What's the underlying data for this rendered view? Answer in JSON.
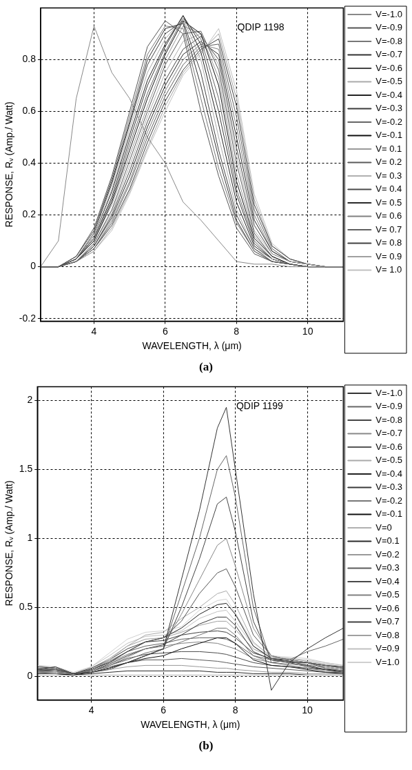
{
  "chart_data": [
    {
      "type": "line",
      "xlabel": "WAVELENGTH, λ (μm)",
      "ylabel": "RESPONSE, Rᵥ (Amp./ Watt)",
      "annotations": [
        "QDIP 1198",
        "(a)"
      ],
      "x": [
        2.5,
        3,
        3.5,
        4,
        4.5,
        5,
        5.5,
        6,
        6.5,
        7,
        7.5,
        8,
        8.5,
        9,
        9.5,
        10,
        10.5,
        11
      ],
      "xlim": [
        2.5,
        11
      ],
      "xticks": [
        4,
        6,
        8,
        10
      ],
      "ylim": [
        -0.21,
        1.0
      ],
      "yticks": [
        -0.2,
        0,
        0.2,
        0.4,
        0.6,
        0.8
      ],
      "grid": true,
      "legend": "right",
      "marker": "none",
      "line_style": "solid",
      "series": [
        {
          "name": "V=-1.0",
          "color": "#888888",
          "values": [
            0,
            0.1,
            0.65,
            0.93,
            0.75,
            0.65,
            0.5,
            0.4,
            0.25,
            0.18,
            0.1,
            0.02,
            0.01,
            0.01,
            0,
            0,
            0,
            0
          ]
        },
        {
          "name": "V=-0.9",
          "color": "#555555",
          "values": [
            0,
            0,
            0.04,
            0.15,
            0.35,
            0.6,
            0.85,
            0.95,
            0.9,
            0.6,
            0.35,
            0.15,
            0.05,
            0.02,
            0.01,
            0,
            0,
            0
          ]
        },
        {
          "name": "V=-0.8",
          "color": "#777777",
          "values": [
            0,
            0,
            0.04,
            0.14,
            0.34,
            0.58,
            0.82,
            0.93,
            0.92,
            0.65,
            0.38,
            0.17,
            0.06,
            0.02,
            0.01,
            0,
            0,
            0
          ]
        },
        {
          "name": "V=-0.7",
          "color": "#333333",
          "values": [
            0,
            0,
            0.04,
            0.14,
            0.33,
            0.56,
            0.8,
            0.92,
            0.94,
            0.7,
            0.42,
            0.18,
            0.06,
            0.02,
            0.01,
            0,
            0,
            0
          ]
        },
        {
          "name": "V=-0.6",
          "color": "#444444",
          "values": [
            0,
            0,
            0.03,
            0.13,
            0.32,
            0.55,
            0.78,
            0.9,
            0.95,
            0.75,
            0.45,
            0.2,
            0.07,
            0.02,
            0.01,
            0,
            0,
            0
          ]
        },
        {
          "name": "V=-0.5",
          "color": "#aaaaaa",
          "values": [
            0,
            0,
            0.03,
            0.12,
            0.3,
            0.53,
            0.75,
            0.88,
            0.96,
            0.8,
            0.5,
            0.22,
            0.07,
            0.03,
            0.01,
            0,
            0,
            0
          ]
        },
        {
          "name": "V=-0.4",
          "color": "#222222",
          "values": [
            0,
            0,
            0.03,
            0.12,
            0.29,
            0.51,
            0.72,
            0.86,
            0.97,
            0.83,
            0.55,
            0.25,
            0.08,
            0.03,
            0.01,
            0,
            0,
            0
          ]
        },
        {
          "name": "V=-0.3",
          "color": "#3a3a3a",
          "values": [
            0,
            0,
            0.03,
            0.11,
            0.27,
            0.49,
            0.7,
            0.85,
            0.97,
            0.86,
            0.6,
            0.28,
            0.09,
            0.03,
            0.01,
            0,
            0,
            0
          ]
        },
        {
          "name": "V=-0.2",
          "color": "#666666",
          "values": [
            0,
            0,
            0.03,
            0.11,
            0.26,
            0.47,
            0.67,
            0.83,
            0.96,
            0.88,
            0.65,
            0.3,
            0.1,
            0.03,
            0.01,
            0,
            0,
            0
          ]
        },
        {
          "name": "V=-0.1",
          "color": "#111111",
          "values": [
            0,
            0,
            0.03,
            0.1,
            0.25,
            0.45,
            0.65,
            0.82,
            0.95,
            0.9,
            0.7,
            0.33,
            0.11,
            0.04,
            0.01,
            0,
            0,
            0
          ]
        },
        {
          "name": "V= 0.1",
          "color": "#999999",
          "values": [
            0,
            0,
            0.03,
            0.1,
            0.24,
            0.43,
            0.62,
            0.8,
            0.93,
            0.9,
            0.73,
            0.36,
            0.12,
            0.04,
            0.01,
            0,
            0,
            0
          ]
        },
        {
          "name": "V= 0.2",
          "color": "#5a5a5a",
          "values": [
            0,
            0,
            0.02,
            0.09,
            0.22,
            0.41,
            0.6,
            0.78,
            0.9,
            0.91,
            0.76,
            0.4,
            0.13,
            0.04,
            0.01,
            0,
            0,
            0
          ]
        },
        {
          "name": "V= 0.3",
          "color": "#b0b0b0",
          "values": [
            0,
            0,
            0.02,
            0.09,
            0.21,
            0.39,
            0.58,
            0.75,
            0.87,
            0.9,
            0.78,
            0.43,
            0.14,
            0.05,
            0.02,
            0.01,
            0,
            0
          ]
        },
        {
          "name": "V= 0.4",
          "color": "#4a4a4a",
          "values": [
            0,
            0,
            0.02,
            0.08,
            0.2,
            0.37,
            0.56,
            0.72,
            0.84,
            0.89,
            0.8,
            0.46,
            0.16,
            0.05,
            0.02,
            0.01,
            0,
            0
          ]
        },
        {
          "name": "V= 0.5",
          "color": "#2a2a2a",
          "values": [
            0,
            0,
            0.02,
            0.08,
            0.19,
            0.35,
            0.54,
            0.7,
            0.82,
            0.87,
            0.82,
            0.5,
            0.18,
            0.06,
            0.02,
            0.01,
            0,
            0
          ]
        },
        {
          "name": "V= 0.6",
          "color": "#808080",
          "values": [
            0,
            0,
            0.02,
            0.07,
            0.18,
            0.33,
            0.52,
            0.68,
            0.8,
            0.86,
            0.84,
            0.54,
            0.2,
            0.06,
            0.02,
            0.01,
            0,
            0
          ]
        },
        {
          "name": "V= 0.7",
          "color": "#606060",
          "values": [
            0,
            0,
            0.02,
            0.07,
            0.17,
            0.32,
            0.5,
            0.66,
            0.78,
            0.85,
            0.86,
            0.58,
            0.22,
            0.07,
            0.02,
            0.01,
            0,
            0
          ]
        },
        {
          "name": "V= 0.8",
          "color": "#404040",
          "values": [
            0,
            0,
            0.02,
            0.07,
            0.16,
            0.3,
            0.48,
            0.64,
            0.76,
            0.84,
            0.88,
            0.62,
            0.24,
            0.08,
            0.03,
            0.01,
            0,
            0
          ]
        },
        {
          "name": "V= 0.9",
          "color": "#a0a0a0",
          "values": [
            0,
            0,
            0.02,
            0.06,
            0.15,
            0.29,
            0.46,
            0.62,
            0.75,
            0.83,
            0.9,
            0.65,
            0.26,
            0.08,
            0.03,
            0.01,
            0,
            0
          ]
        },
        {
          "name": "V= 1.0",
          "color": "#c0c0c0",
          "values": [
            0,
            0,
            0.02,
            0.06,
            0.14,
            0.28,
            0.45,
            0.6,
            0.74,
            0.82,
            0.92,
            0.68,
            0.28,
            0.09,
            0.03,
            0.01,
            0,
            0
          ]
        }
      ]
    },
    {
      "type": "line",
      "xlabel": "WAVELENGTH, λ (μm)",
      "ylabel": "RESPONSE, Rᵥ (Amp./ Watt)",
      "annotations": [
        "QDIP 1199",
        "(b)"
      ],
      "x": [
        2.5,
        3,
        3.5,
        4,
        4.5,
        5,
        5.5,
        6,
        6.5,
        7,
        7.5,
        7.75,
        8,
        8.5,
        9,
        9.5,
        10,
        10.5,
        11
      ],
      "xlim": [
        2.5,
        11
      ],
      "xticks": [
        4,
        6,
        8,
        10
      ],
      "ylim": [
        -0.17,
        2.1
      ],
      "yticks": [
        0,
        0.5,
        1,
        1.5,
        2
      ],
      "grid": true,
      "legend": "right",
      "marker": "none",
      "line_style": "solid",
      "series": [
        {
          "name": "V=-1.0",
          "color": "#333333",
          "values": [
            0.05,
            0.07,
            0.02,
            0.03,
            0.06,
            0.1,
            0.15,
            0.2,
            0.7,
            1.2,
            1.8,
            1.95,
            1.5,
            0.6,
            -0.1,
            0.1,
            0.2,
            0.28,
            0.35
          ]
        },
        {
          "name": "V=-0.9",
          "color": "#666666",
          "values": [
            0.04,
            0.06,
            0.02,
            0.03,
            0.05,
            0.1,
            0.15,
            0.2,
            0.6,
            1.0,
            1.5,
            1.6,
            1.3,
            0.5,
            0.1,
            0.12,
            0.18,
            0.22,
            0.27
          ]
        },
        {
          "name": "V=-0.8",
          "color": "#444444",
          "values": [
            0.04,
            0.05,
            0.02,
            0.03,
            0.06,
            0.1,
            0.15,
            0.2,
            0.5,
            0.85,
            1.25,
            1.3,
            1.05,
            0.4,
            0.12,
            0.1,
            0.1,
            0.08,
            0.07
          ]
        },
        {
          "name": "V=-0.7",
          "color": "#888888",
          "values": [
            0.03,
            0.04,
            0.02,
            0.04,
            0.08,
            0.14,
            0.2,
            0.22,
            0.45,
            0.7,
            0.95,
            1.0,
            0.8,
            0.35,
            0.15,
            0.12,
            0.1,
            0.07,
            0.05
          ]
        },
        {
          "name": "V=-0.6",
          "color": "#555555",
          "values": [
            0.03,
            0.04,
            0.02,
            0.05,
            0.1,
            0.18,
            0.25,
            0.28,
            0.4,
            0.6,
            0.75,
            0.78,
            0.65,
            0.3,
            0.15,
            0.12,
            0.1,
            0.06,
            0.04
          ]
        },
        {
          "name": "V=-0.5",
          "color": "#aaaaaa",
          "values": [
            0.03,
            0.03,
            0.02,
            0.05,
            0.12,
            0.22,
            0.3,
            0.32,
            0.42,
            0.5,
            0.6,
            0.62,
            0.52,
            0.25,
            0.14,
            0.12,
            0.09,
            0.06,
            0.04
          ]
        },
        {
          "name": "V=-0.4",
          "color": "#222222",
          "values": [
            0.03,
            0.03,
            0.02,
            0.05,
            0.1,
            0.18,
            0.25,
            0.28,
            0.35,
            0.45,
            0.52,
            0.53,
            0.45,
            0.22,
            0.13,
            0.11,
            0.08,
            0.05,
            0.04
          ]
        },
        {
          "name": "V=-0.3",
          "color": "#3a3a3a",
          "values": [
            0.02,
            0.03,
            0.02,
            0.04,
            0.09,
            0.15,
            0.2,
            0.23,
            0.3,
            0.38,
            0.43,
            0.43,
            0.37,
            0.18,
            0.12,
            0.1,
            0.07,
            0.05,
            0.03
          ]
        },
        {
          "name": "V=-0.2",
          "color": "#777777",
          "values": [
            0.02,
            0.02,
            0.02,
            0.04,
            0.08,
            0.12,
            0.17,
            0.2,
            0.25,
            0.3,
            0.35,
            0.35,
            0.3,
            0.15,
            0.1,
            0.08,
            0.06,
            0.04,
            0.03
          ]
        },
        {
          "name": "V=-0.1",
          "color": "#111111",
          "values": [
            0.02,
            0.02,
            0.01,
            0.03,
            0.06,
            0.1,
            0.13,
            0.15,
            0.2,
            0.24,
            0.28,
            0.28,
            0.24,
            0.12,
            0.08,
            0.07,
            0.05,
            0.03,
            0.02
          ]
        },
        {
          "name": "V=0",
          "color": "#b0b0b0",
          "values": [
            0.01,
            0.01,
            0.01,
            0.01,
            0.01,
            0.01,
            0.01,
            0.01,
            0.01,
            0.01,
            0.01,
            0.01,
            0.01,
            0.01,
            0.01,
            0.01,
            0.01,
            0.01,
            0.01
          ]
        },
        {
          "name": "V=0.1",
          "color": "#2a2a2a",
          "values": [
            0.02,
            0.02,
            0.01,
            0.02,
            0.03,
            0.04,
            0.04,
            0.04,
            0.04,
            0.04,
            0.03,
            0.03,
            0.03,
            0.02,
            0.02,
            0.02,
            0.01,
            0.01,
            0.01
          ]
        },
        {
          "name": "V=0.2",
          "color": "#999999",
          "values": [
            0.03,
            0.03,
            0.02,
            0.03,
            0.05,
            0.07,
            0.08,
            0.08,
            0.08,
            0.07,
            0.06,
            0.06,
            0.05,
            0.04,
            0.03,
            0.03,
            0.02,
            0.02,
            0.02
          ]
        },
        {
          "name": "V=0.3",
          "color": "#5a5a5a",
          "values": [
            0.04,
            0.04,
            0.02,
            0.04,
            0.07,
            0.1,
            0.12,
            0.12,
            0.13,
            0.12,
            0.11,
            0.1,
            0.09,
            0.07,
            0.06,
            0.05,
            0.04,
            0.03,
            0.03
          ]
        },
        {
          "name": "V=0.4",
          "color": "#4a4a4a",
          "values": [
            0.05,
            0.04,
            0.02,
            0.04,
            0.08,
            0.13,
            0.16,
            0.17,
            0.18,
            0.18,
            0.17,
            0.16,
            0.14,
            0.1,
            0.08,
            0.07,
            0.06,
            0.05,
            0.04
          ]
        },
        {
          "name": "V=0.5",
          "color": "#808080",
          "values": [
            0.05,
            0.05,
            0.02,
            0.05,
            0.1,
            0.16,
            0.2,
            0.22,
            0.24,
            0.25,
            0.24,
            0.22,
            0.2,
            0.13,
            0.1,
            0.09,
            0.08,
            0.07,
            0.05
          ]
        },
        {
          "name": "V=0.6",
          "color": "#606060",
          "values": [
            0.06,
            0.05,
            0.02,
            0.05,
            0.11,
            0.18,
            0.22,
            0.24,
            0.27,
            0.28,
            0.28,
            0.27,
            0.24,
            0.15,
            0.12,
            0.11,
            0.1,
            0.08,
            0.06
          ]
        },
        {
          "name": "V=0.7",
          "color": "#404040",
          "values": [
            0.07,
            0.06,
            0.02,
            0.06,
            0.12,
            0.2,
            0.25,
            0.26,
            0.3,
            0.32,
            0.33,
            0.32,
            0.28,
            0.17,
            0.13,
            0.12,
            0.1,
            0.08,
            0.06
          ]
        },
        {
          "name": "V=0.8",
          "color": "#a0a0a0",
          "values": [
            0.07,
            0.06,
            0.02,
            0.06,
            0.13,
            0.22,
            0.27,
            0.28,
            0.32,
            0.37,
            0.4,
            0.4,
            0.34,
            0.2,
            0.14,
            0.13,
            0.11,
            0.09,
            0.07
          ]
        },
        {
          "name": "V=0.9",
          "color": "#c0c0c0",
          "values": [
            0.08,
            0.06,
            0.02,
            0.07,
            0.15,
            0.24,
            0.29,
            0.3,
            0.33,
            0.42,
            0.47,
            0.48,
            0.4,
            0.22,
            0.14,
            0.13,
            0.12,
            0.1,
            0.08
          ]
        },
        {
          "name": "V=1.0",
          "color": "#d0d0d0",
          "values": [
            0.08,
            0.07,
            0.03,
            0.07,
            0.17,
            0.27,
            0.32,
            0.33,
            0.36,
            0.48,
            0.55,
            0.56,
            0.46,
            0.24,
            0.15,
            0.14,
            0.13,
            0.1,
            0.08
          ]
        }
      ]
    }
  ]
}
